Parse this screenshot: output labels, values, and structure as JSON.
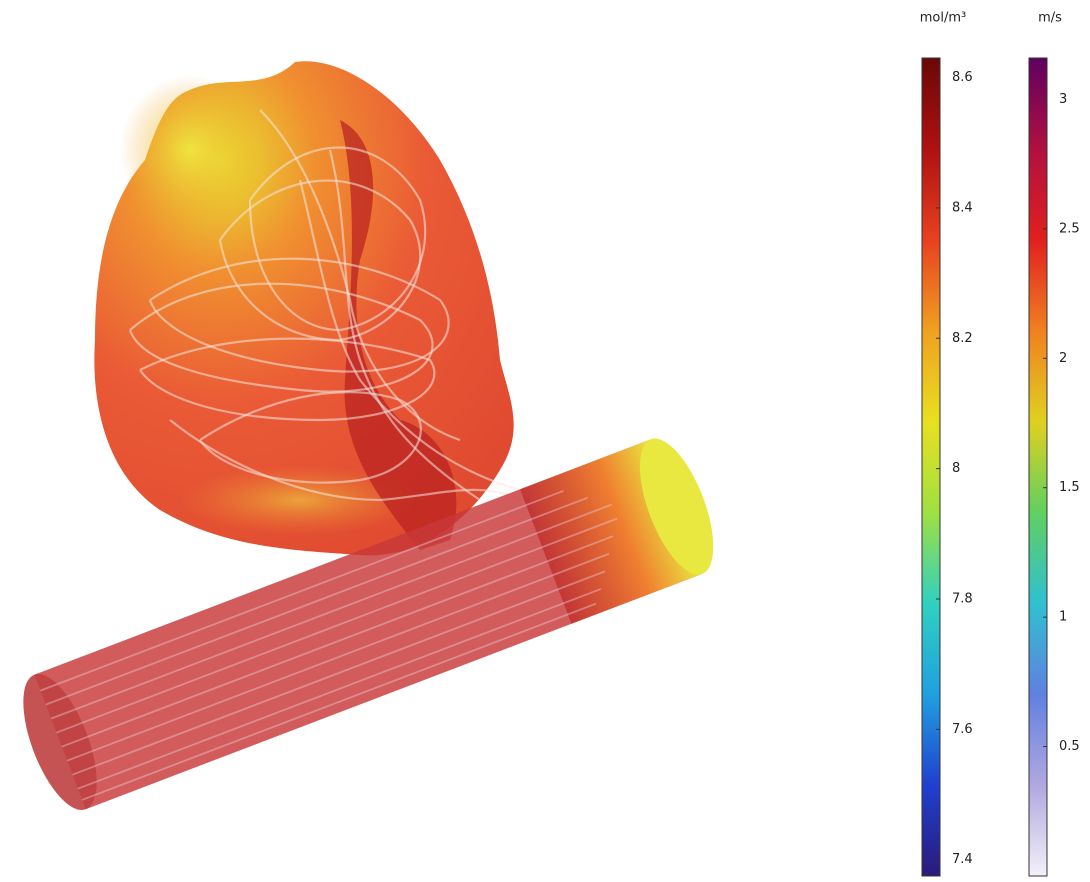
{
  "colorbars": [
    {
      "unit": "mol/m³",
      "range": [
        7.375,
        8.63
      ],
      "ticks": [
        7.4,
        7.6,
        7.8,
        8,
        8.2,
        8.4,
        8.6
      ],
      "colors": [
        "#2b1a7a",
        "#2040d0",
        "#20a0e0",
        "#30d0c0",
        "#a0e040",
        "#e8e020",
        "#f0a020",
        "#e84020",
        "#b01010",
        "#6a0808"
      ]
    },
    {
      "unit": "m/s",
      "range": [
        0,
        3.16
      ],
      "ticks": [
        0.5,
        1,
        1.5,
        2,
        2.5,
        3
      ],
      "colors": [
        "#f4f0f8",
        "#b0a8e0",
        "#6080e0",
        "#30c0d0",
        "#60d060",
        "#e0d020",
        "#f08020",
        "#e02020",
        "#b01040",
        "#600060"
      ]
    }
  ]
}
